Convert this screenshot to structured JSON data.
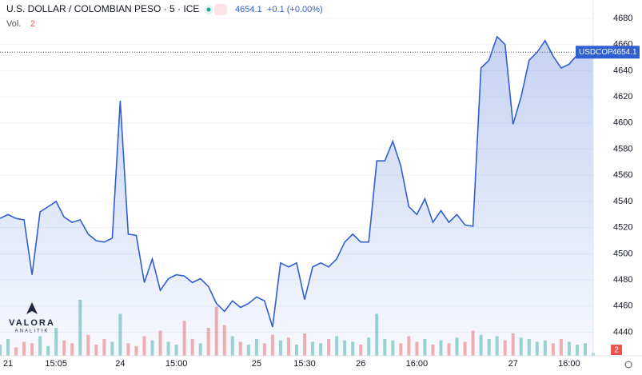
{
  "chart_data": {
    "type": "area",
    "title": "U.S. DOLLAR / COLOMBIAN PESO · 5 · ICE",
    "change": "+0.1 (+0.00%)",
    "categories": [
      null,
      "21",
      null,
      null,
      null,
      null,
      null,
      "15:05",
      null,
      null,
      null,
      null,
      null,
      null,
      null,
      "24",
      null,
      null,
      null,
      null,
      null,
      null,
      "15:00",
      null,
      null,
      null,
      null,
      null,
      null,
      null,
      null,
      null,
      "25",
      null,
      null,
      null,
      null,
      null,
      "15:30",
      null,
      null,
      null,
      null,
      null,
      null,
      "26",
      null,
      null,
      null,
      null,
      null,
      null,
      "16:00",
      null,
      null,
      null,
      null,
      null,
      null,
      null,
      null,
      null,
      null,
      null,
      "27",
      null,
      null,
      null,
      null,
      null,
      null,
      "16:00",
      null,
      null,
      null
    ],
    "series": [
      {
        "name": "USDCOP",
        "color": "#2f5fd0",
        "values": [
          4527,
          4530,
          4527,
          4526,
          4484,
          4532,
          4536,
          4540,
          4528,
          4524,
          4526,
          4515,
          4510,
          4509,
          4512,
          4617,
          4515,
          4514,
          4478,
          4496,
          4472,
          4481,
          4484,
          4483,
          4478,
          4481,
          4475,
          4462,
          4456,
          4464,
          4459,
          4462,
          4467,
          4464,
          4444,
          4493,
          4490,
          4493,
          4465,
          4490,
          4493,
          4490,
          4496,
          4509,
          4515,
          4509,
          4509,
          4571,
          4571,
          4586,
          4567,
          4536,
          4530,
          4542,
          4524,
          4533,
          4524,
          4530,
          4522,
          4521,
          4642,
          4648,
          4666,
          4660,
          4599,
          4620,
          4648,
          4654,
          4663,
          4651,
          4642,
          4645,
          4652,
          4654,
          4654.1
        ]
      }
    ],
    "volume": {
      "name": "Vol.",
      "values": [
        8,
        12,
        6,
        10,
        9,
        14,
        7,
        20,
        11,
        9,
        40,
        15,
        8,
        12,
        10,
        30,
        9,
        7,
        14,
        11,
        18,
        10,
        8,
        25,
        12,
        9,
        20,
        35,
        22,
        14,
        10,
        8,
        12,
        9,
        15,
        11,
        13,
        8,
        16,
        10,
        9,
        12,
        14,
        11,
        10,
        8,
        13,
        30,
        12,
        11,
        9,
        14,
        10,
        12,
        8,
        11,
        9,
        13,
        10,
        18,
        15,
        12,
        14,
        11,
        16,
        13,
        12,
        10,
        11,
        9,
        12,
        10,
        8,
        9,
        2
      ]
    },
    "ylim": [
      4422,
      4694
    ],
    "yticks": [
      4440,
      4460,
      4480,
      4500,
      4520,
      4540,
      4560,
      4580,
      4600,
      4620,
      4640,
      4660,
      4680
    ],
    "grid": true,
    "logo": {
      "name": "VALORA",
      "sub": "ANALITIK"
    }
  }
}
